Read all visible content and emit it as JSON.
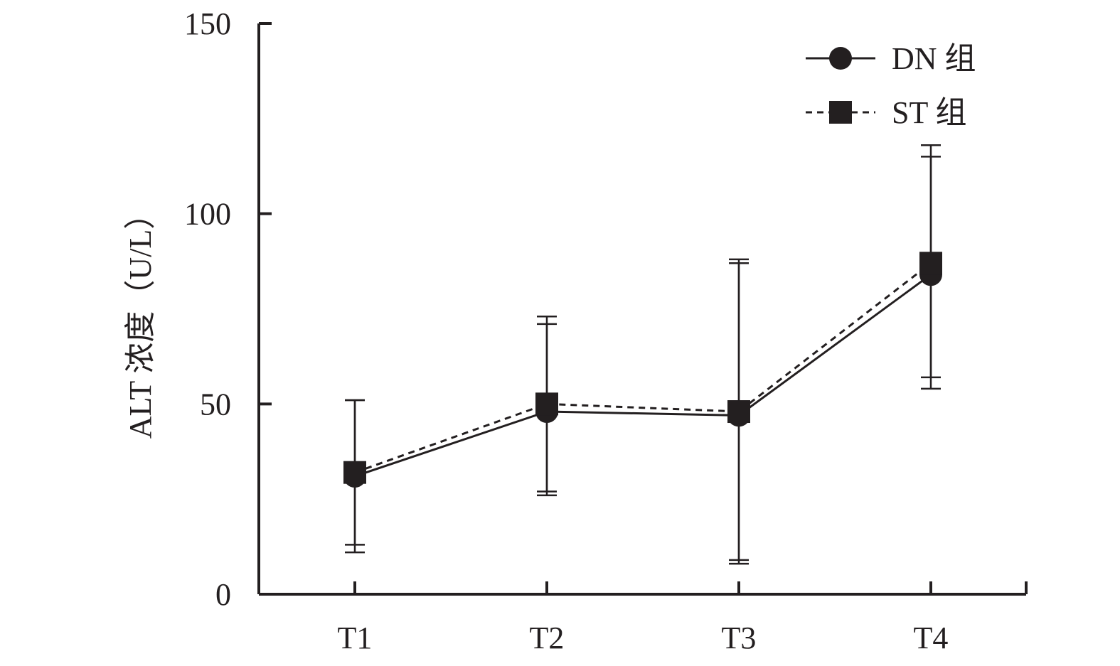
{
  "chart_data": {
    "type": "line",
    "categories": [
      "T1",
      "T2",
      "T3",
      "T4"
    ],
    "ylabel": "ALT 浓度（U/L）",
    "xlabel": "",
    "ylim": [
      0,
      150
    ],
    "yticks": [
      0,
      50,
      100,
      150
    ],
    "grid": false,
    "legend_position": "top-right",
    "series": [
      {
        "name": "DN 组",
        "marker": "circle",
        "line_style": "solid",
        "values": [
          31,
          48,
          47,
          84
        ],
        "error_upper": [
          51,
          71,
          87,
          115
        ],
        "error_lower": [
          11,
          26,
          8,
          54
        ]
      },
      {
        "name": "ST 组",
        "marker": "square",
        "line_style": "dashed",
        "values": [
          32,
          50,
          48,
          87
        ],
        "error_upper": [
          51,
          73,
          88,
          118
        ],
        "error_lower": [
          13,
          27,
          9,
          57
        ]
      }
    ],
    "colors": {
      "ink": "#231f20"
    }
  }
}
